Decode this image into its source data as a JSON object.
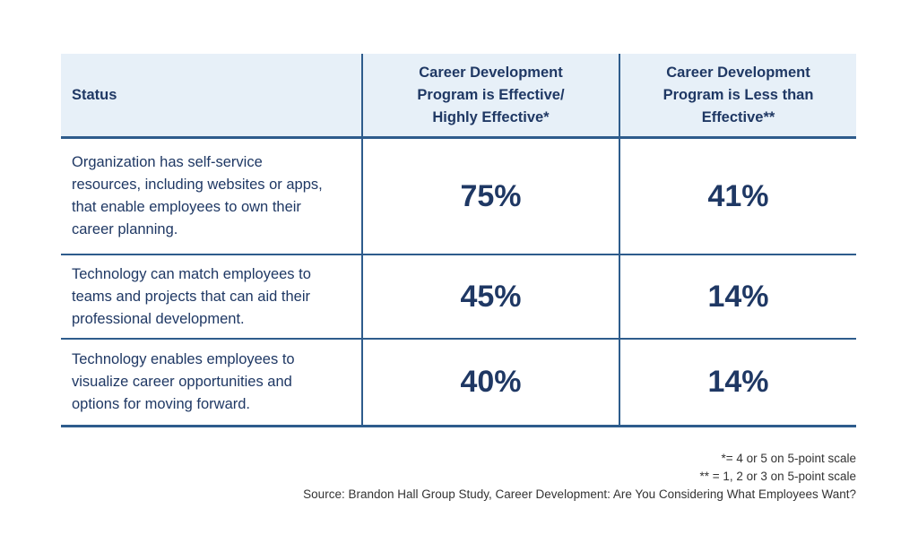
{
  "colors": {
    "header_bg": "#e7f0f8",
    "text_navy": "#1f3864",
    "border_blue": "#2e5c8c",
    "footnote_text": "#333333"
  },
  "table": {
    "header": {
      "status_label": "Status",
      "col_effective": "Career Development\nProgram is Effective/\nHighly Effective*",
      "col_less_effective": "Career Development\nProgram is Less than\nEffective**"
    },
    "row_statuses": [
      "Organization has self-service\nresources, including websites or apps,\nthat enable employees to own their\ncareer planning.",
      "Technology can match employees to\nteams and projects that can aid their\nprofessional development.",
      "Technology enables employees to\nvisualize career opportunities and\noptions for moving forward."
    ]
  },
  "chart_data": {
    "type": "table",
    "title": "",
    "columns": [
      "Status",
      "Career Development Program is Effective/ Highly Effective*",
      "Career Development Program is Less than Effective**"
    ],
    "rows": [
      [
        "Organization has self-service resources, including websites or apps, that enable employees to own their career planning.",
        "75%",
        "41%"
      ],
      [
        "Technology can match employees to teams and projects that can aid their professional development.",
        "45%",
        "14%"
      ],
      [
        "Technology enables employees to visualize career opportunities and options for moving forward.",
        "40%",
        "14%"
      ]
    ],
    "footnotes": [
      "*= 4 or 5 on 5-point scale",
      "** = 1, 2 or 3 on 5-point scale"
    ],
    "source": "Source: Brandon Hall Group Study, Career Development: Are You Considering What Employees Want?"
  }
}
